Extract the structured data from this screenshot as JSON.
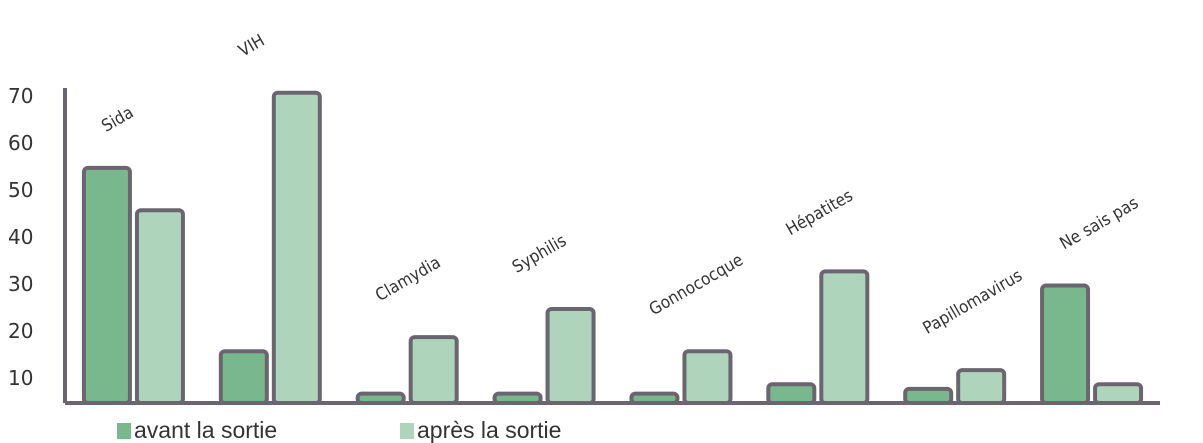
{
  "chart_data": {
    "type": "bar",
    "categories": [
      "Sida",
      "VIH",
      "Clamydia",
      "Syphilis",
      "Gonnococque",
      "Hépatites",
      "Papillomavirus",
      "Ne sais pas"
    ],
    "series": [
      {
        "name": "avant la sortie",
        "color": "#78b88c",
        "values": [
          55,
          16,
          7,
          7,
          7,
          9,
          8,
          30
        ]
      },
      {
        "name": "après la sortie",
        "color": "#aed5bc",
        "values": [
          46,
          71,
          19,
          25,
          16,
          33,
          12,
          9
        ]
      }
    ],
    "ylim": [
      5,
      72
    ],
    "yticks": [
      10,
      20,
      30,
      40,
      50,
      60,
      70
    ],
    "grid": false
  }
}
